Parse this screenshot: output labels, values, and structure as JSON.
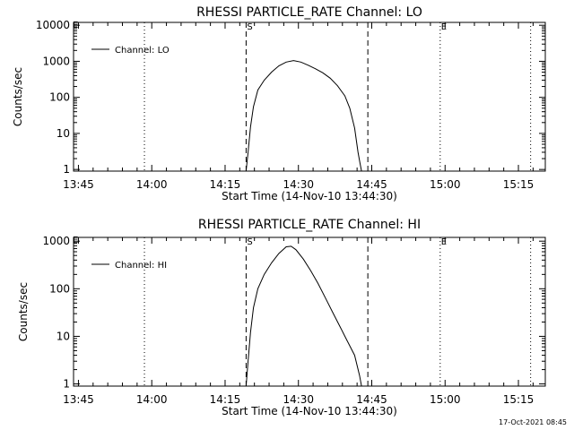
{
  "footer": {
    "timestamp": "17-Oct-2021 08:45"
  },
  "chart_data": [
    {
      "type": "line",
      "title": "RHESSI PARTICLE_RATE Channel: LO",
      "xlabel": "Start Time (14-Nov-10 13:44:30)",
      "ylabel": "Counts/sec",
      "yscale": "log",
      "ylim": [
        0.9,
        12000
      ],
      "xlim_minutes": [
        -0.5,
        96
      ],
      "x_tick_labels": [
        "13:45",
        "14:00",
        "14:15",
        "14:30",
        "14:45",
        "15:00",
        "15:15"
      ],
      "x_tick_minutes": [
        0.5,
        15.5,
        30.5,
        45.5,
        60.5,
        75.5,
        90.5
      ],
      "y_ticks": [
        1,
        10,
        100,
        1000,
        10000
      ],
      "y_tick_labels": [
        "1",
        "10",
        "100",
        "1000",
        "10000"
      ],
      "legend": {
        "entry": "Channel: LO",
        "position": "top-left"
      },
      "series": [
        {
          "name": "Channel: LO",
          "x": [
            34.8,
            35.2,
            35.7,
            36.3,
            37.2,
            38.5,
            40.0,
            41.5,
            43.0,
            44.5,
            46.0,
            47.5,
            49.0,
            50.5,
            52.0,
            53.5,
            55.0,
            56.0,
            57.0,
            57.7,
            58.1,
            58.4
          ],
          "y": [
            0.9,
            3,
            15,
            55,
            160,
            300,
            500,
            750,
            950,
            1050,
            950,
            780,
            620,
            480,
            340,
            210,
            110,
            50,
            14,
            3,
            1.5,
            0.9
          ]
        }
      ],
      "vertical_lines": [
        {
          "minute": 14.0,
          "style": "dotted"
        },
        {
          "minute": 34.8,
          "style": "dashed",
          "label": "S"
        },
        {
          "minute": 59.7,
          "style": "dashed"
        },
        {
          "minute": 74.5,
          "style": "dotted",
          "label": "E"
        },
        {
          "minute": 93.0,
          "style": "dotted"
        }
      ],
      "corner_marker": "E"
    },
    {
      "type": "line",
      "title": "RHESSI PARTICLE_RATE Channel: HI",
      "xlabel": "Start Time (14-Nov-10 13:44:30)",
      "ylabel": "Counts/sec",
      "yscale": "log",
      "ylim": [
        0.9,
        1200
      ],
      "xlim_minutes": [
        -0.5,
        96
      ],
      "x_tick_labels": [
        "13:45",
        "14:00",
        "14:15",
        "14:30",
        "14:45",
        "15:00",
        "15:15"
      ],
      "x_tick_minutes": [
        0.5,
        15.5,
        30.5,
        45.5,
        60.5,
        75.5,
        90.5
      ],
      "y_ticks": [
        1,
        10,
        100,
        1000
      ],
      "y_tick_labels": [
        "1",
        "10",
        "100",
        "1000"
      ],
      "legend": {
        "entry": "Channel: HI",
        "position": "top-left"
      },
      "series": [
        {
          "name": "Channel: HI",
          "x": [
            34.8,
            35.2,
            35.7,
            36.3,
            37.2,
            38.5,
            40.0,
            41.5,
            43.0,
            44.0,
            45.0,
            46.5,
            48.0,
            49.5,
            51.0,
            52.5,
            54.0,
            55.5,
            57.0,
            58.0,
            58.4
          ],
          "y": [
            0.9,
            3,
            12,
            40,
            100,
            200,
            350,
            550,
            760,
            780,
            660,
            420,
            240,
            130,
            65,
            32,
            16,
            8,
            4,
            1.5,
            0.9
          ]
        }
      ],
      "vertical_lines": [
        {
          "minute": 14.0,
          "style": "dotted"
        },
        {
          "minute": 34.8,
          "style": "dashed",
          "label": "S"
        },
        {
          "minute": 59.7,
          "style": "dashed"
        },
        {
          "minute": 74.5,
          "style": "dotted",
          "label": "E"
        },
        {
          "minute": 93.0,
          "style": "dotted"
        }
      ],
      "corner_marker": "E"
    }
  ]
}
